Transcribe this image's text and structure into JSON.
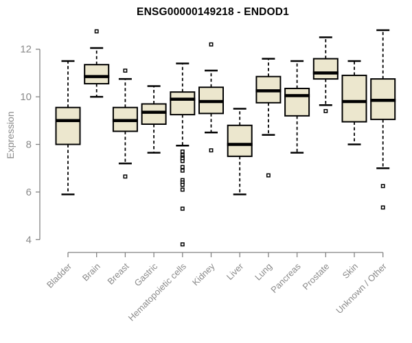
{
  "chart_data": {
    "type": "boxplot",
    "title": "ENSG00000149218 - ENDOD1",
    "ylabel": "Expression",
    "xlabel": "",
    "ylim": [
      3.6,
      13.1
    ],
    "yticks": [
      4,
      6,
      8,
      10,
      12
    ],
    "grid": false,
    "legend": "none",
    "categories": [
      "Bladder",
      "Brain",
      "Breast",
      "Gastric",
      "Hematopoietic cells",
      "Kidney",
      "Liver",
      "Lung",
      "Pancreas",
      "Prostate",
      "Skin",
      "Unknown / Other"
    ],
    "series": [
      {
        "name": "Bladder",
        "whisker_low": 5.9,
        "q1": 8.0,
        "median": 9.0,
        "q3": 9.55,
        "whisker_high": 11.5,
        "outliers": []
      },
      {
        "name": "Brain",
        "whisker_low": 10.0,
        "q1": 10.55,
        "median": 10.85,
        "q3": 11.35,
        "whisker_high": 12.05,
        "outliers": [
          12.75
        ]
      },
      {
        "name": "Breast",
        "whisker_low": 7.2,
        "q1": 8.55,
        "median": 9.0,
        "q3": 9.55,
        "whisker_high": 10.75,
        "outliers": [
          11.1,
          6.65
        ]
      },
      {
        "name": "Gastric",
        "whisker_low": 7.65,
        "q1": 8.85,
        "median": 9.35,
        "q3": 9.7,
        "whisker_high": 10.45,
        "outliers": []
      },
      {
        "name": "Hematopoietic cells",
        "whisker_low": 7.95,
        "q1": 9.25,
        "median": 9.9,
        "q3": 10.2,
        "whisker_high": 11.4,
        "outliers": [
          7.7,
          7.55,
          7.45,
          7.4,
          7.3,
          7.05,
          6.9,
          6.5,
          6.4,
          6.3,
          6.1,
          5.3,
          3.8
        ]
      },
      {
        "name": "Kidney",
        "whisker_low": 8.5,
        "q1": 9.3,
        "median": 9.8,
        "q3": 10.4,
        "whisker_high": 11.1,
        "outliers": [
          12.2,
          7.75
        ]
      },
      {
        "name": "Liver",
        "whisker_low": 5.9,
        "q1": 7.5,
        "median": 8.0,
        "q3": 8.8,
        "whisker_high": 9.5,
        "outliers": []
      },
      {
        "name": "Lung",
        "whisker_low": 8.4,
        "q1": 9.75,
        "median": 10.25,
        "q3": 10.85,
        "whisker_high": 11.6,
        "outliers": [
          6.7
        ]
      },
      {
        "name": "Pancreas",
        "whisker_low": 7.65,
        "q1": 9.2,
        "median": 10.05,
        "q3": 10.35,
        "whisker_high": 11.5,
        "outliers": []
      },
      {
        "name": "Prostate",
        "whisker_low": 9.65,
        "q1": 10.75,
        "median": 11.0,
        "q3": 11.6,
        "whisker_high": 12.5,
        "outliers": [
          9.4
        ]
      },
      {
        "name": "Skin",
        "whisker_low": 8.0,
        "q1": 8.95,
        "median": 9.8,
        "q3": 10.9,
        "whisker_high": 11.5,
        "outliers": []
      },
      {
        "name": "Unknown / Other",
        "whisker_low": 7.0,
        "q1": 9.05,
        "median": 9.85,
        "q3": 10.75,
        "whisker_high": 12.8,
        "outliers": [
          6.25,
          5.35
        ]
      }
    ],
    "colors": {
      "box_fill": "#ECE7CE",
      "box_stroke": "#000000",
      "median": "#000000",
      "axis_line": "#828282",
      "axis_text": "#8A8A8A",
      "title": "#000000",
      "background": "#FFFFFF"
    }
  }
}
